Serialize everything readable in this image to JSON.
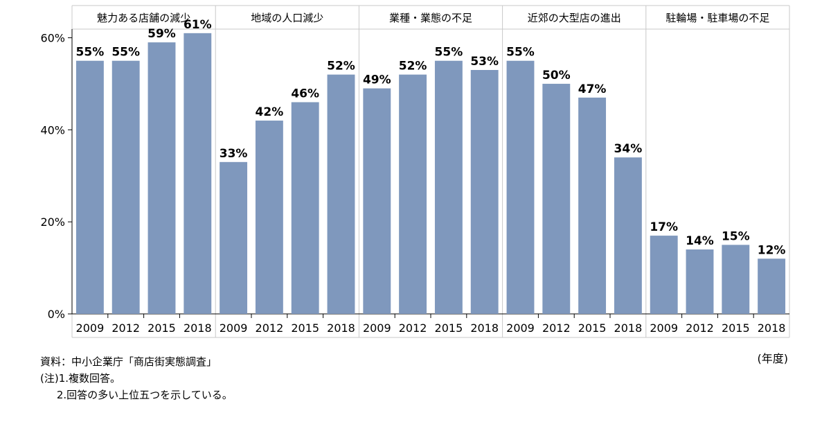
{
  "chart_data": {
    "type": "bar",
    "groups": [
      "魅力ある店舗の減少",
      "地域の人口減少",
      "業種・業態の不足",
      "近郊の大型店の進出",
      "駐輪場・駐車場の不足"
    ],
    "categories": [
      "2009",
      "2012",
      "2015",
      "2018"
    ],
    "values": [
      [
        55,
        55,
        59,
        61
      ],
      [
        33,
        42,
        46,
        52
      ],
      [
        49,
        52,
        55,
        53
      ],
      [
        55,
        50,
        47,
        34
      ],
      [
        17,
        14,
        15,
        12
      ]
    ],
    "value_labels": [
      [
        "55%",
        "55%",
        "59%",
        "61%"
      ],
      [
        "33%",
        "42%",
        "46%",
        "52%"
      ],
      [
        "49%",
        "52%",
        "55%",
        "53%"
      ],
      [
        "55%",
        "50%",
        "47%",
        "34%"
      ],
      [
        "17%",
        "14%",
        "15%",
        "12%"
      ]
    ],
    "yticks": [
      "0%",
      "20%",
      "40%",
      "60%"
    ],
    "ytick_values": [
      0,
      20,
      40,
      60
    ],
    "ylim": [
      0,
      67
    ],
    "xlabel_unit": "(年度)",
    "bar_color": "#7f98bd",
    "grid": false
  },
  "notes": {
    "source": "資料：中小企業庁「商店街実態調査」",
    "note1": "(注)1.複数回答。",
    "note2": "     2.回答の多い上位五つを示している。"
  }
}
